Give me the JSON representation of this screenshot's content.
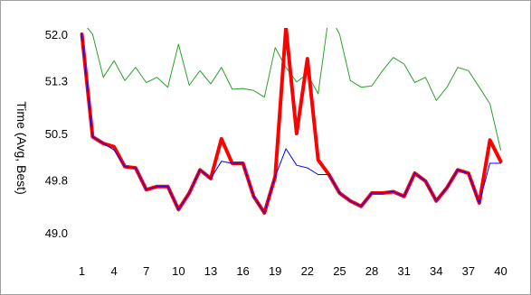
{
  "chart_data": {
    "type": "line",
    "ylabel": "Time (Avg, Best)",
    "xlabel": "",
    "title": "",
    "x": [
      1,
      2,
      3,
      4,
      5,
      6,
      7,
      8,
      9,
      10,
      11,
      12,
      13,
      14,
      15,
      16,
      17,
      18,
      19,
      20,
      21,
      22,
      23,
      24,
      25,
      26,
      27,
      28,
      29,
      30,
      31,
      32,
      33,
      34,
      35,
      36,
      37,
      38,
      39,
      40
    ],
    "xticks": [
      1,
      4,
      7,
      10,
      13,
      16,
      19,
      22,
      25,
      28,
      31,
      34,
      37,
      40
    ],
    "yticks": [
      49.0,
      49.8,
      50.5,
      51.3,
      52.0
    ],
    "ytick_labels": [
      "49.0",
      "49.8",
      "50.5",
      "51.3",
      "52.0"
    ],
    "xlim": [
      0.2,
      40.8
    ],
    "ylim": [
      48.85,
      52.0
    ],
    "grid": false,
    "legend": "none",
    "series": [
      {
        "color": "#2ca02c",
        "width": 1,
        "values": [
          52.2,
          52.0,
          51.35,
          51.6,
          51.3,
          51.5,
          51.27,
          51.35,
          51.2,
          51.85,
          51.23,
          51.45,
          51.25,
          51.5,
          51.17,
          51.18,
          51.15,
          51.05,
          51.8,
          51.5,
          51.28,
          51.4,
          51.1,
          52.3,
          52.0,
          51.3,
          51.2,
          51.22,
          51.45,
          51.65,
          51.55,
          51.27,
          51.35,
          51.0,
          51.2,
          51.5,
          51.45,
          51.2,
          50.95,
          50.25
        ]
      },
      {
        "color": "#ff0000",
        "width": 4,
        "values": [
          52.0,
          50.45,
          50.35,
          50.3,
          50.0,
          49.98,
          49.65,
          49.7,
          49.7,
          49.35,
          49.6,
          49.95,
          49.82,
          50.42,
          50.05,
          50.05,
          49.55,
          49.3,
          49.85,
          52.1,
          50.5,
          51.63,
          50.1,
          49.88,
          49.6,
          49.48,
          49.4,
          49.6,
          49.6,
          49.62,
          49.55,
          49.9,
          49.78,
          49.48,
          49.68,
          49.95,
          49.9,
          49.45,
          50.4,
          50.08
        ]
      },
      {
        "color": "#0000ff",
        "width": 1,
        "values": [
          52.0,
          50.45,
          50.35,
          50.25,
          50.0,
          49.98,
          49.65,
          49.7,
          49.7,
          49.35,
          49.6,
          49.95,
          49.82,
          50.08,
          50.05,
          50.05,
          49.55,
          49.3,
          49.85,
          50.27,
          50.02,
          49.98,
          49.88,
          49.88,
          49.6,
          49.48,
          49.4,
          49.6,
          49.6,
          49.62,
          49.55,
          49.9,
          49.78,
          49.48,
          49.68,
          49.95,
          49.9,
          49.45,
          50.05,
          50.05
        ]
      }
    ]
  }
}
